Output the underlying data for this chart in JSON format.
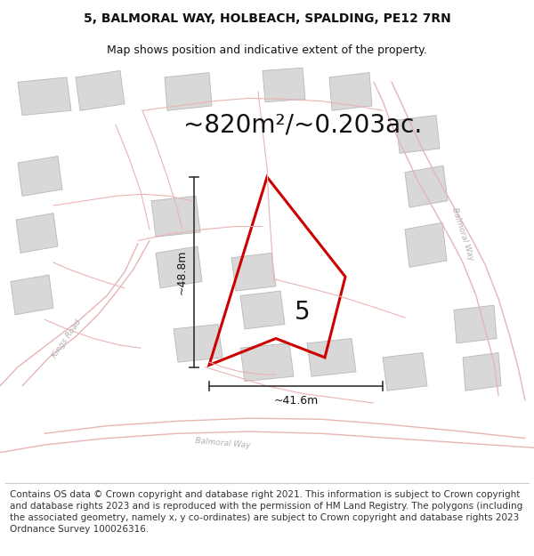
{
  "title_line1": "5, BALMORAL WAY, HOLBEACH, SPALDING, PE12 7RN",
  "title_line2": "Map shows position and indicative extent of the property.",
  "area_label": "~820m²/~0.203ac.",
  "plot_number": "5",
  "dim_height": "~48.8m",
  "dim_width": "~41.6m",
  "footer_text": "Contains OS data © Crown copyright and database right 2021. This information is subject to Crown copyright and database rights 2023 and is reproduced with the permission of HM Land Registry. The polygons (including the associated geometry, namely x, y co-ordinates) are subject to Crown copyright and database rights 2023 Ordnance Survey 100026316.",
  "map_bg": "#ffffff",
  "road_color": "#e8b4b4",
  "road_lw": 1.0,
  "building_fc": "#d8d8d8",
  "building_ec": "#b8b8b8",
  "plot_color": "#cc0000",
  "plot_lw": 2.2,
  "dim_color": "#333333",
  "text_color": "#111111",
  "road_label_color": "#b0b0b0",
  "title_fontsize": 10,
  "subtitle_fontsize": 9,
  "area_fontsize": 20,
  "plot_num_fontsize": 20,
  "dim_fontsize": 9,
  "footer_fontsize": 7.5
}
